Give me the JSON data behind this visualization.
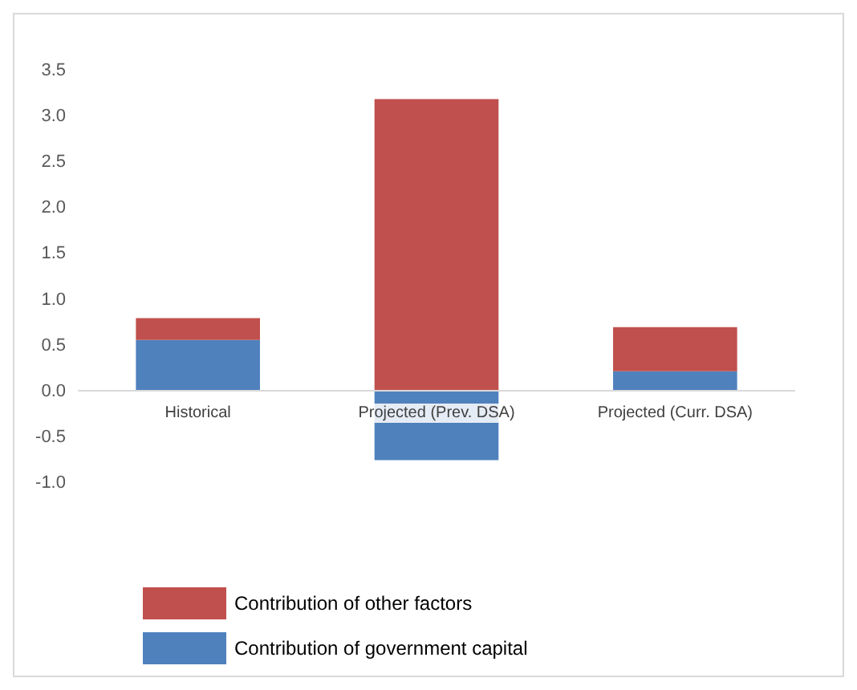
{
  "chart_data": {
    "type": "bar",
    "stacked": true,
    "categories": [
      "Historical",
      "Projected (Prev. DSA)",
      "Projected (Curr. DSA)"
    ],
    "series": [
      {
        "name": "Contribution of government capital",
        "color": "#4f81bd",
        "values": [
          0.56,
          -0.75,
          0.22
        ]
      },
      {
        "name": "Contribution of other factors",
        "color": "#c0504d",
        "values": [
          0.24,
          3.19,
          0.48
        ]
      }
    ],
    "ylim": [
      -1,
      3.5
    ],
    "yticks": [
      {
        "value": -1,
        "label": "-1.0"
      },
      {
        "value": -0.5,
        "label": "-0.5"
      },
      {
        "value": 0,
        "label": "0.0"
      },
      {
        "value": 0.5,
        "label": "0.5"
      },
      {
        "value": 1,
        "label": "1.0"
      },
      {
        "value": 1.5,
        "label": "1.5"
      },
      {
        "value": 2,
        "label": "2.0"
      },
      {
        "value": 2.5,
        "label": "2.5"
      },
      {
        "value": 3,
        "label": "3.0"
      },
      {
        "value": 3.5,
        "label": "3.5"
      }
    ],
    "grid": false,
    "legend": "bottom"
  }
}
